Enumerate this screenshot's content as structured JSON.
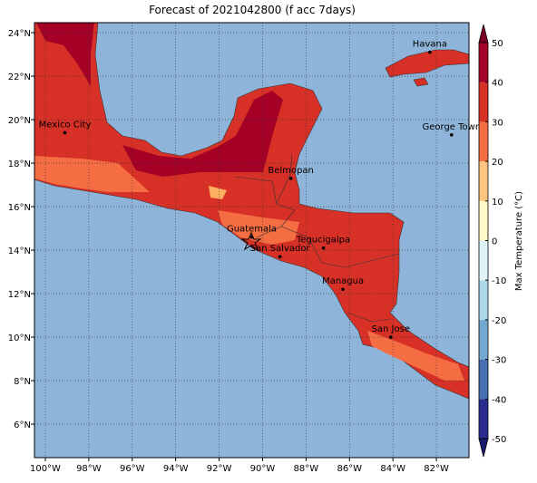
{
  "title": "Forecast of 2021042800 (f acc 7days)",
  "map": {
    "lonlim": [
      -100.5,
      -80.5
    ],
    "latlim": [
      4.46,
      24.46
    ],
    "ocean_color": "#8fb4d9",
    "lon_ticks": [
      {
        "value": -100,
        "label": "100°W"
      },
      {
        "value": -98,
        "label": "98°W"
      },
      {
        "value": -96,
        "label": "96°W"
      },
      {
        "value": -94,
        "label": "94°W"
      },
      {
        "value": -92,
        "label": "92°W"
      },
      {
        "value": -90,
        "label": "90°W"
      },
      {
        "value": -88,
        "label": "88°W"
      },
      {
        "value": -86,
        "label": "86°W"
      },
      {
        "value": -84,
        "label": "84°W"
      },
      {
        "value": -82,
        "label": "82°W"
      }
    ],
    "lat_ticks": [
      {
        "value": 6,
        "label": "6°N"
      },
      {
        "value": 8,
        "label": "8°N"
      },
      {
        "value": 10,
        "label": "10°N"
      },
      {
        "value": 12,
        "label": "12°N"
      },
      {
        "value": 14,
        "label": "14°N"
      },
      {
        "value": 16,
        "label": "16°N"
      },
      {
        "value": 18,
        "label": "18°N"
      },
      {
        "value": 20,
        "label": "20°N"
      },
      {
        "value": 22,
        "label": "22°N"
      },
      {
        "value": 24,
        "label": "24°N"
      }
    ],
    "cities": [
      {
        "name": "Havana",
        "lon": -82.3,
        "lat": 23.1
      },
      {
        "name": "Mexico City",
        "lon": -99.1,
        "lat": 19.4
      },
      {
        "name": "George Town",
        "lon": -81.3,
        "lat": 19.3
      },
      {
        "name": "Belmopan",
        "lon": -88.7,
        "lat": 17.3
      },
      {
        "name": "Guatemala",
        "lon": -90.5,
        "lat": 14.6
      },
      {
        "name": "Tegucigalpa",
        "lon": -87.2,
        "lat": 14.1
      },
      {
        "name": "San Salvador",
        "lon": -89.2,
        "lat": 13.7
      },
      {
        "name": "Managua",
        "lon": -86.3,
        "lat": 12.2
      },
      {
        "name": "San Jose",
        "lon": -84.1,
        "lat": 10.0
      }
    ]
  },
  "colorbar": {
    "label": "Max Temperature (°C)",
    "ticks": [
      -50,
      -40,
      -30,
      -20,
      -10,
      0,
      10,
      20,
      30,
      40,
      50
    ],
    "colors": [
      "#2b2d8e",
      "#4670b0",
      "#74a9cf",
      "#abd9e9",
      "#e0f3f8",
      "#fffac8",
      "#fdc57f",
      "#f46d43",
      "#d73027",
      "#a50026"
    ],
    "under_color": "#1a1a6e",
    "over_color": "#7f0026"
  }
}
